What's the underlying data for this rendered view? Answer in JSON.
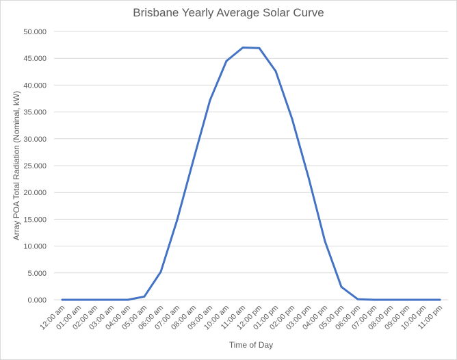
{
  "chart_data": {
    "type": "line",
    "title": "Brisbane Yearly Average Solar Curve",
    "xlabel": "Time of Day",
    "ylabel": "Array POA Total Radiation (Nominal, kW)",
    "ylim": [
      0,
      50
    ],
    "y_ticks": [
      "0.000",
      "5.000",
      "10.000",
      "15.000",
      "20.000",
      "25.000",
      "30.000",
      "35.000",
      "40.000",
      "45.000",
      "50.000"
    ],
    "categories": [
      "12:00 am",
      "01:00 am",
      "02:00 am",
      "03:00 am",
      "04:00 am",
      "05:00 am",
      "06:00 am",
      "07:00 am",
      "08:00 am",
      "09:00 am",
      "10:00 am",
      "11:00 am",
      "12:00 pm",
      "01:00 pm",
      "02:00 pm",
      "03:00 pm",
      "04:00 pm",
      "05:00 pm",
      "06:00 pm",
      "07:00 pm",
      "08:00 pm",
      "09:00 pm",
      "10:00 pm",
      "11:00 pm"
    ],
    "series": [
      {
        "values": [
          0,
          0,
          0,
          0,
          0,
          0.6,
          5.2,
          14.9,
          26.2,
          37.2,
          44.5,
          47.0,
          46.9,
          42.6,
          33.7,
          22.8,
          10.9,
          2.4,
          0.1,
          0,
          0,
          0,
          0,
          0
        ],
        "color": "#4472c4"
      }
    ],
    "grid": true,
    "legend": "none"
  }
}
